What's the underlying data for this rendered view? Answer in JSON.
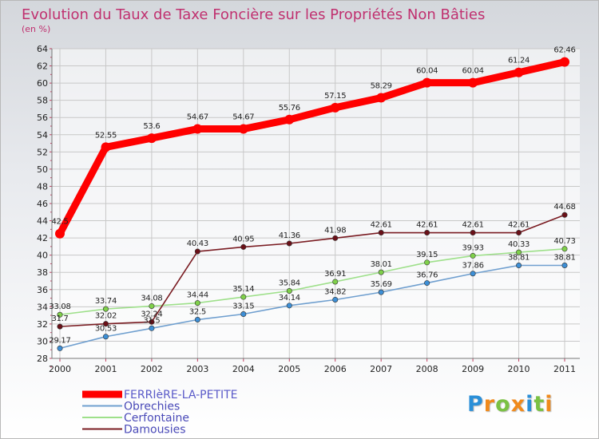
{
  "chart_data": {
    "type": "line",
    "title": "Evolution du Taux de Taxe Foncière sur les Propriétés Non Bâties",
    "subtitle": "(en %)",
    "categories": [
      "2000",
      "2001",
      "2002",
      "2003",
      "2004",
      "2005",
      "2006",
      "2007",
      "2008",
      "2009",
      "2010",
      "2011"
    ],
    "ylim": [
      28,
      64
    ],
    "yticks": [
      28,
      30,
      32,
      34,
      36,
      38,
      40,
      42,
      44,
      46,
      48,
      50,
      52,
      54,
      56,
      58,
      60,
      62,
      64
    ],
    "grid": true,
    "legend_position": "bottom-left",
    "series": [
      {
        "name": "FERRIèRE-LA-PETITE",
        "color": "#ff0000",
        "marker": "#ff0000",
        "values": [
          42.5,
          52.55,
          53.6,
          54.67,
          54.67,
          55.76,
          57.15,
          58.29,
          60.04,
          60.04,
          61.24,
          62.46
        ],
        "labels": [
          "42.5",
          "52.55",
          "53.6",
          "54.67",
          "54.67",
          "55.76",
          "57.15",
          "58.29",
          "60.04",
          "60.04",
          "61.24",
          "62.46"
        ]
      },
      {
        "name": "Obrechies",
        "color": "#6f9fcf",
        "marker": "#3d8fd6",
        "values": [
          29.17,
          30.53,
          31.5,
          32.5,
          33.15,
          34.14,
          34.82,
          35.69,
          36.76,
          37.86,
          38.81,
          38.81
        ],
        "labels": [
          "29.17",
          "30.53",
          "31.5",
          "32.5",
          "33.15",
          "34.14",
          "34.82",
          "35.69",
          "36.76",
          "37.86",
          "38.81",
          "38.81"
        ]
      },
      {
        "name": "Cerfontaine",
        "color": "#9ee08a",
        "marker": "#7fd04a",
        "values": [
          33.08,
          33.74,
          34.08,
          34.44,
          35.14,
          35.84,
          36.91,
          38.01,
          39.15,
          39.93,
          40.33,
          40.73
        ],
        "labels": [
          "33.08",
          "33.74",
          "34.08",
          "34.44",
          "35.14",
          "35.84",
          "36.91",
          "38.01",
          "39.15",
          "39.93",
          "40.33",
          "40.73"
        ]
      },
      {
        "name": "Damousies",
        "color": "#7a1c22",
        "marker": "#6a1018",
        "values": [
          31.7,
          32.02,
          32.24,
          40.43,
          40.95,
          41.36,
          41.98,
          42.61,
          42.61,
          42.61,
          42.61,
          44.68
        ],
        "labels": [
          "31.7",
          "32.02",
          "32.24",
          "40.43",
          "40.95",
          "41.36",
          "41.98",
          "42.61",
          "42.61",
          "42.61",
          "42.61",
          "44.68"
        ]
      }
    ]
  },
  "logo": {
    "letters": [
      "P",
      "r",
      "o",
      "x",
      "i",
      "t",
      "i"
    ],
    "colors": [
      "#2a8fd8",
      "#f08a1c",
      "#7ac143",
      "#f08a1c",
      "#2a8fd8",
      "#7ac143",
      "#f08a1c"
    ]
  }
}
